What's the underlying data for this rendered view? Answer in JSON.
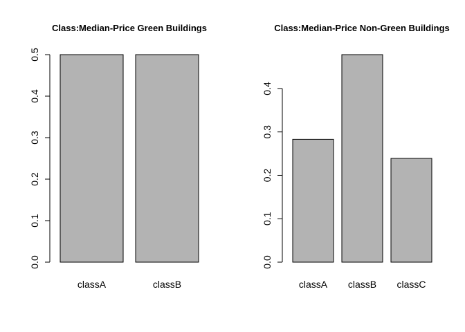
{
  "chart_data": [
    {
      "type": "bar",
      "title": "Class:Median-Price Green Buildings",
      "categories": [
        "classA",
        "classB"
      ],
      "values": [
        0.5,
        0.5
      ],
      "yticks": [
        "0.0",
        "0.1",
        "0.2",
        "0.3",
        "0.4",
        "0.5"
      ],
      "ylim": [
        0,
        0.5
      ],
      "xlabel": "",
      "ylabel": "",
      "grid": false,
      "bar_color": "#b3b3b3"
    },
    {
      "type": "bar",
      "title": "Class:Median-Price Non-Green Buildings",
      "categories": [
        "classA",
        "classB",
        "classC"
      ],
      "values": [
        0.283,
        0.478,
        0.239
      ],
      "yticks": [
        "0.0",
        "0.1",
        "0.2",
        "0.3",
        "0.4"
      ],
      "ylim": [
        0,
        0.478
      ],
      "xlabel": "",
      "ylabel": "",
      "grid": false,
      "bar_color": "#b3b3b3"
    }
  ]
}
